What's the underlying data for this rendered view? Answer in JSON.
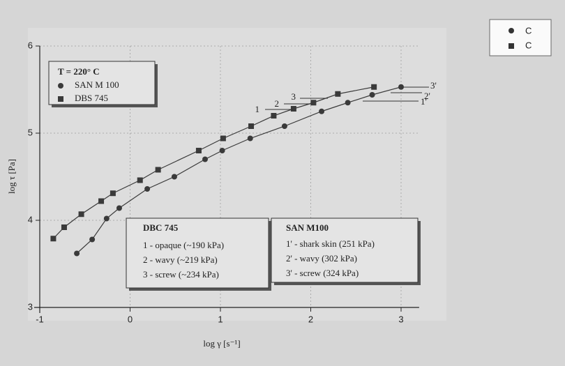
{
  "chart_data": {
    "type": "line",
    "xlabel": "log γ [s⁻¹]",
    "ylabel": "log τ [Pa]",
    "xlim": [
      -1,
      3.2
    ],
    "ylim": [
      3,
      6
    ],
    "xticks": [
      -1,
      0,
      1,
      2,
      3
    ],
    "yticks": [
      3,
      4,
      5,
      6
    ],
    "grid": true,
    "legend_title": "T = 220° C",
    "series": [
      {
        "name": "SAN M 100",
        "color": "#3a3a3a",
        "marker": "circle",
        "x": [
          -0.59,
          -0.42,
          -0.26,
          -0.12,
          0.19,
          0.49,
          0.83,
          1.02,
          1.33,
          1.71,
          2.12,
          2.41,
          2.68,
          3.0
        ],
        "values": [
          3.62,
          3.78,
          4.02,
          4.14,
          4.36,
          4.5,
          4.7,
          4.8,
          4.94,
          5.08,
          5.25,
          5.35,
          5.44,
          5.53
        ]
      },
      {
        "name": "DBS 745",
        "color": "#3a3a3a",
        "marker": "square",
        "x": [
          -0.85,
          -0.73,
          -0.54,
          -0.32,
          -0.19,
          0.11,
          0.31,
          0.76,
          1.03,
          1.34,
          1.59,
          1.81,
          2.03,
          2.3,
          2.7
        ],
        "values": [
          3.79,
          3.92,
          4.07,
          4.22,
          4.31,
          4.46,
          4.58,
          4.8,
          4.94,
          5.08,
          5.2,
          5.28,
          5.35,
          5.45,
          5.53
        ]
      }
    ],
    "point_labels": [
      "1",
      "2",
      "3",
      "1'",
      "2'",
      "3'"
    ],
    "boxes": [
      {
        "title": "DBC 745",
        "lines": [
          "1 - opaque (~190 kPa)",
          "2 - wavy (~219 kPa)",
          "3 - screw (~234 kPa)"
        ]
      },
      {
        "title": "SAN M100",
        "lines": [
          "1' - shark skin (251 kPa)",
          "2' - wavy (302 kPa)",
          "3' - screw (324 kPa)"
        ]
      }
    ],
    "corner_legend": [
      "C",
      "C"
    ]
  }
}
